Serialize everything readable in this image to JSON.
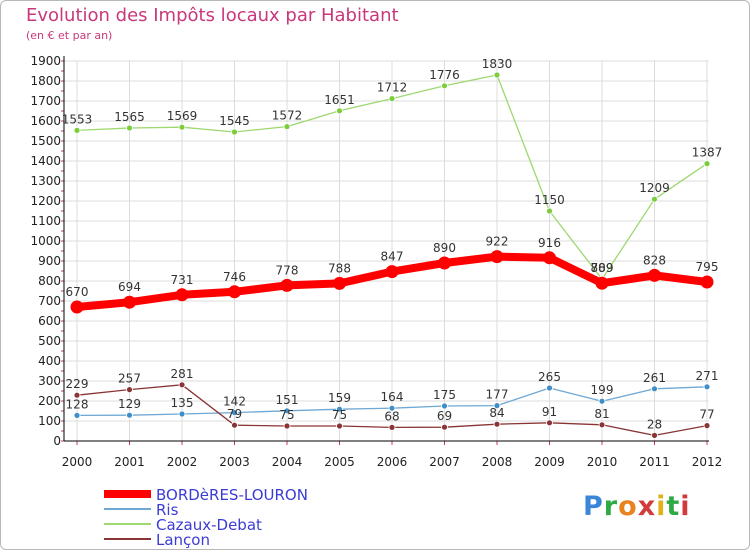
{
  "header": {
    "title": "Evolution des Impôts locaux par Habitant",
    "subtitle": "(en € et par an)"
  },
  "logo": {
    "text": "Proxiti",
    "letter_colors": [
      "#3a86d8",
      "#2eaa44",
      "#e8831e",
      "#d23b3b",
      "#e0b21c",
      "#2eaa44",
      "#d23b3b"
    ]
  },
  "colors": {
    "grid": "#dcdcdc",
    "axis": "#000000",
    "tick_mark": "#c8387a",
    "legend_text": "#3b3bd6"
  },
  "chart_data": {
    "type": "line",
    "title": "Evolution des Impôts locaux par Habitant",
    "subtitle": "(en € et par an)",
    "xlabel": "",
    "ylabel": "",
    "ylim": [
      0,
      1900
    ],
    "yticks": [
      0,
      100,
      200,
      300,
      400,
      500,
      600,
      700,
      800,
      900,
      1000,
      1100,
      1200,
      1300,
      1400,
      1500,
      1600,
      1700,
      1800,
      1900
    ],
    "grid": true,
    "legend_position": "bottom-left",
    "categories": [
      "2000",
      "2001",
      "2002",
      "2003",
      "2004",
      "2005",
      "2006",
      "2007",
      "2008",
      "2009",
      "2010",
      "2011",
      "2012"
    ],
    "series": [
      {
        "name": "BORDèRES-LOURON",
        "values": [
          670,
          694,
          731,
          746,
          778,
          788,
          847,
          890,
          922,
          916,
          789,
          828,
          795
        ],
        "color": "#ff0000",
        "marker_color": "#ff0000",
        "thick": true
      },
      {
        "name": "Ris",
        "values": [
          128,
          129,
          135,
          142,
          151,
          159,
          164,
          175,
          177,
          265,
          199,
          261,
          271
        ],
        "color": "#6fa8d4",
        "marker_color": "#3f8ec8",
        "thick": false
      },
      {
        "name": "Cazaux-Debat",
        "values": [
          1553,
          1565,
          1569,
          1545,
          1572,
          1651,
          1712,
          1776,
          1830,
          1150,
          809,
          1209,
          1387
        ],
        "color": "#9ed870",
        "marker_color": "#7ccc3c",
        "thick": false
      },
      {
        "name": "Lançon",
        "values": [
          229,
          257,
          281,
          79,
          75,
          75,
          68,
          69,
          84,
          91,
          81,
          28,
          77
        ],
        "color": "#8a3535",
        "marker_color": "#8a3535",
        "thick": false
      }
    ]
  }
}
